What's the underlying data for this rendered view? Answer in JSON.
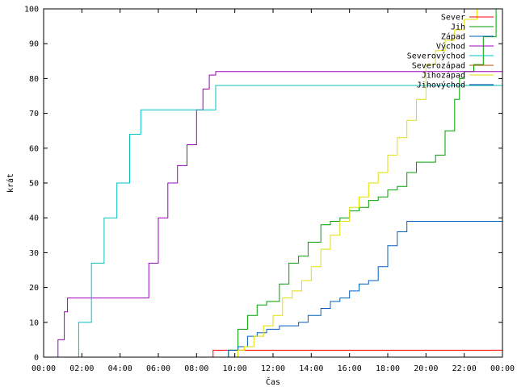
{
  "chart_data": {
    "type": "line",
    "xlabel": "Čas",
    "ylabel": "krát",
    "xlim": [
      "00:00",
      "00:00"
    ],
    "ylim": [
      0,
      100
    ],
    "grid": false,
    "legend_position": "top-right",
    "x_ticks": [
      "00:00",
      "02:00",
      "04:00",
      "06:00",
      "08:00",
      "10:00",
      "12:00",
      "14:00",
      "16:00",
      "18:00",
      "20:00",
      "22:00",
      "00:00"
    ],
    "y_ticks": [
      0,
      10,
      20,
      30,
      40,
      50,
      60,
      70,
      80,
      90,
      100
    ],
    "series": [
      {
        "name": "Sever",
        "color": "#ff0000",
        "x": [
          "00:00",
          "08:51",
          "08:52",
          "24:00"
        ],
        "y": [
          0,
          0,
          2,
          2
        ]
      },
      {
        "name": "Jih",
        "color": "#00a000",
        "x": [
          "00:00",
          "09:15",
          "09:40",
          "10:10",
          "10:40",
          "11:10",
          "11:40",
          "12:20",
          "12:50",
          "13:20",
          "13:50",
          "14:30",
          "15:00",
          "15:30",
          "16:00",
          "16:30",
          "17:00",
          "17:30",
          "18:00",
          "18:30",
          "19:00",
          "19:30",
          "20:00",
          "20:15",
          "20:30",
          "21:00",
          "21:30",
          "21:45",
          "22:00",
          "22:30",
          "23:00",
          "23:40"
        ],
        "y": [
          0,
          0,
          2,
          8,
          12,
          15,
          16,
          21,
          27,
          29,
          33,
          38,
          39,
          40,
          42,
          43,
          45,
          46,
          48,
          49,
          53,
          56,
          56,
          56,
          58,
          65,
          74,
          80,
          82,
          84,
          92,
          100
        ]
      },
      {
        "name": "Západ",
        "color": "#0060c0",
        "x": [
          "00:00",
          "09:20",
          "09:40",
          "10:10",
          "10:40",
          "11:10",
          "11:40",
          "12:20",
          "12:50",
          "13:20",
          "13:50",
          "14:30",
          "15:00",
          "15:30",
          "16:00",
          "16:30",
          "17:00",
          "17:30",
          "18:00",
          "18:30",
          "19:00",
          "24:00"
        ],
        "y": [
          0,
          0,
          2,
          3,
          6,
          7,
          8,
          9,
          9,
          10,
          12,
          14,
          16,
          17,
          19,
          21,
          22,
          26,
          32,
          36,
          39,
          39
        ]
      },
      {
        "name": "Východ",
        "color": "#a000c0",
        "x": [
          "00:00",
          "00:28",
          "00:45",
          "01:05",
          "01:15",
          "05:05",
          "05:30",
          "06:00",
          "06:30",
          "07:00",
          "07:30",
          "08:00",
          "08:20",
          "08:40",
          "09:00",
          "24:00"
        ],
        "y": [
          0,
          0,
          5,
          13,
          17,
          17,
          27,
          40,
          50,
          55,
          61,
          71,
          77,
          81,
          82,
          82
        ]
      },
      {
        "name": "Severovýchod",
        "color": "#00c0c0",
        "x": [
          "00:00",
          "01:25",
          "01:50",
          "02:30",
          "03:10",
          "03:50",
          "04:30",
          "05:05",
          "08:40",
          "09:00",
          "24:00"
        ],
        "y": [
          0,
          0,
          10,
          27,
          40,
          50,
          64,
          71,
          71,
          78,
          78
        ]
      },
      {
        "name": "Severozápad",
        "color": "#b05000",
        "x": [],
        "y": []
      },
      {
        "name": "Jihozápad",
        "color": "#e0e000",
        "x": [
          "00:00",
          "09:50",
          "10:10",
          "10:30",
          "11:00",
          "11:30",
          "12:00",
          "12:30",
          "13:00",
          "13:30",
          "14:00",
          "14:30",
          "15:00",
          "15:30",
          "16:00",
          "16:30",
          "17:00",
          "17:30",
          "18:00",
          "18:30",
          "19:00",
          "19:30",
          "20:00",
          "20:30",
          "21:00",
          "21:30",
          "22:00",
          "22:40"
        ],
        "y": [
          0,
          0,
          2,
          3,
          6,
          9,
          12,
          17,
          19,
          22,
          26,
          31,
          35,
          39,
          43,
          46,
          50,
          53,
          58,
          63,
          68,
          74,
          84,
          88,
          91,
          94,
          97,
          100
        ]
      },
      {
        "name": "Jihovýchod",
        "color": "#0040a0",
        "x": [],
        "y": []
      }
    ]
  }
}
